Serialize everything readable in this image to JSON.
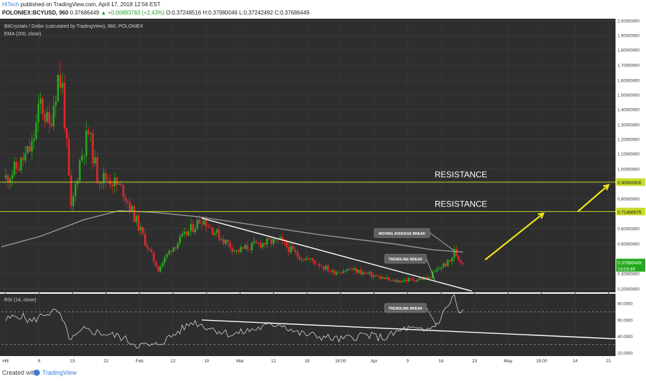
{
  "header": {
    "publisher": "HiTech",
    "published_text": "published on TradingView.com, April 17, 2018 12:56 EST",
    "symbol_line_prefix": "POLONIEX:BCYUSD, 960",
    "last_price": "0.37686449",
    "change": "▲ +0.00893783 (+2.43%)",
    "ohlc": "O:0.37248516 H:0.37980046 L:0.37242492 C:0.37686449"
  },
  "footer": {
    "created_with": "Created with",
    "brand": "TradingView"
  },
  "colors": {
    "background": "#2e2e2e",
    "up": "#26a91e",
    "down": "#e2282d",
    "ema": "#9a9a9a",
    "resistance": "#c8dc2a",
    "arrows": "#f0e61a",
    "trendline": "#ffffff"
  },
  "chart_data": [
    {
      "type": "candlestick",
      "title": "BitCrystals / Dollar (calculated by TradingView), 960, POLONIEX",
      "indicator_label": "EMA (200, close)",
      "x_ticks": [
        "Hlll",
        "8",
        "15",
        "22",
        "Feb",
        "12",
        "19",
        "Mar",
        "12",
        "19",
        "19:00",
        "Apr",
        "9",
        "16",
        "23",
        "May",
        "19:00",
        "14",
        "21"
      ],
      "y_ticks": [
        "2.00000000",
        "1.90000000",
        "1.80000000",
        "1.70000000",
        "1.60000000",
        "1.50000000",
        "1.40000000",
        "1.30000000",
        "1.20000000",
        "1.10000000",
        "1.00000000",
        "0.90000000",
        "0.80000000",
        "0.60000000",
        "0.50000000",
        "0.30000000",
        "0.20000000"
      ],
      "ylim": [
        0.17,
        2.05
      ],
      "series": [
        {
          "name": "BitCrystals / Dollar",
          "points": [
            {
              "date": "Jan 2",
              "price": 0.94
            },
            {
              "date": "Jan 5",
              "price": 1.02
            },
            {
              "date": "Jan 8",
              "price": 1.15
            },
            {
              "date": "Jan 10",
              "price": 1.45
            },
            {
              "date": "Jan 12",
              "price": 1.28
            },
            {
              "date": "Jan 14",
              "price": 1.62
            },
            {
              "date": "Jan 15",
              "price": 1.55
            },
            {
              "date": "Jan 17",
              "price": 0.72
            },
            {
              "date": "Jan 19",
              "price": 1.05
            },
            {
              "date": "Jan 21",
              "price": 1.25
            },
            {
              "date": "Jan 23",
              "price": 0.95
            },
            {
              "date": "Jan 26",
              "price": 0.93
            },
            {
              "date": "Jan 29",
              "price": 0.85
            },
            {
              "date": "Feb 1",
              "price": 0.65
            },
            {
              "date": "Feb 4",
              "price": 0.45
            },
            {
              "date": "Feb 6",
              "price": 0.33
            },
            {
              "date": "Feb 9",
              "price": 0.47
            },
            {
              "date": "Feb 12",
              "price": 0.55
            },
            {
              "date": "Feb 16",
              "price": 0.67
            },
            {
              "date": "Feb 20",
              "price": 0.55
            },
            {
              "date": "Feb 24",
              "price": 0.45
            },
            {
              "date": "Mar 1",
              "price": 0.5
            },
            {
              "date": "Mar 6",
              "price": 0.52
            },
            {
              "date": "Mar 10",
              "price": 0.42
            },
            {
              "date": "Mar 14",
              "price": 0.38
            },
            {
              "date": "Mar 18",
              "price": 0.31
            },
            {
              "date": "Mar 22",
              "price": 0.33
            },
            {
              "date": "Mar 27",
              "price": 0.29
            },
            {
              "date": "Apr 1",
              "price": 0.25
            },
            {
              "date": "Apr 5",
              "price": 0.26
            },
            {
              "date": "Apr 9",
              "price": 0.27
            },
            {
              "date": "Apr 12",
              "price": 0.35
            },
            {
              "date": "Apr 14",
              "price": 0.38
            },
            {
              "date": "Apr 15",
              "price": 0.45
            },
            {
              "date": "Apr 16",
              "price": 0.4
            },
            {
              "date": "Apr 17",
              "price": 0.377
            }
          ]
        },
        {
          "name": "EMA (200, close)",
          "points": [
            {
              "date": "Jan 1",
              "price": 0.48
            },
            {
              "date": "Jan 10",
              "price": 0.55
            },
            {
              "date": "Jan 20",
              "price": 0.66
            },
            {
              "date": "Jan 28",
              "price": 0.72
            },
            {
              "date": "Feb 5",
              "price": 0.71
            },
            {
              "date": "Feb 15",
              "price": 0.68
            },
            {
              "date": "Mar 1",
              "price": 0.62
            },
            {
              "date": "Mar 15",
              "price": 0.56
            },
            {
              "date": "Apr 1",
              "price": 0.5
            },
            {
              "date": "Apr 10",
              "price": 0.46
            },
            {
              "date": "Apr 17",
              "price": 0.445
            }
          ]
        }
      ],
      "resistance_levels": [
        {
          "label": "RESISTANCE",
          "value": 0.909935,
          "price_tag": "0.90993500"
        },
        {
          "label": "RESISTANCE",
          "value": 0.71466675,
          "price_tag": "0.71466675"
        }
      ],
      "price_tags": [
        {
          "text": "0.37686449",
          "value": 0.37686449
        },
        {
          "text": "14:03:49",
          "value": 0.35
        }
      ],
      "annotations": [
        "MOVING AVERAGE BREAK",
        "TRENDLINE BREAK"
      ]
    },
    {
      "type": "line",
      "title": "RSI (14, close)",
      "y_ticks": [
        "80.0000",
        "60.0000",
        "40.0000",
        "20.0000"
      ],
      "ylim": [
        16,
        92
      ],
      "bands": [
        70,
        30
      ],
      "series": [
        {
          "name": "RSI (14, close)",
          "points": [
            {
              "date": "Jan 2",
              "rsi": 60
            },
            {
              "date": "Jan 5",
              "rsi": 66
            },
            {
              "date": "Jan 8",
              "rsi": 58
            },
            {
              "date": "Jan 11",
              "rsi": 68
            },
            {
              "date": "Jan 14",
              "rsi": 70
            },
            {
              "date": "Jan 17",
              "rsi": 35
            },
            {
              "date": "Jan 20",
              "rsi": 48
            },
            {
              "date": "Jan 24",
              "rsi": 44
            },
            {
              "date": "Jan 28",
              "rsi": 40
            },
            {
              "date": "Feb 1",
              "rsi": 30
            },
            {
              "date": "Feb 5",
              "rsi": 28
            },
            {
              "date": "Feb 9",
              "rsi": 40
            },
            {
              "date": "Feb 14",
              "rsi": 58
            },
            {
              "date": "Feb 18",
              "rsi": 50
            },
            {
              "date": "Feb 23",
              "rsi": 42
            },
            {
              "date": "Mar 1",
              "rsi": 50
            },
            {
              "date": "Mar 6",
              "rsi": 56
            },
            {
              "date": "Mar 10",
              "rsi": 44
            },
            {
              "date": "Mar 15",
              "rsi": 40
            },
            {
              "date": "Mar 20",
              "rsi": 36
            },
            {
              "date": "Mar 25",
              "rsi": 42
            },
            {
              "date": "Mar 30",
              "rsi": 38
            },
            {
              "date": "Apr 4",
              "rsi": 50
            },
            {
              "date": "Apr 8",
              "rsi": 46
            },
            {
              "date": "Apr 11",
              "rsi": 55
            },
            {
              "date": "Apr 14",
              "rsi": 82
            },
            {
              "date": "Apr 15",
              "rsi": 90
            },
            {
              "date": "Apr 16",
              "rsi": 68
            },
            {
              "date": "Apr 17",
              "rsi": 70
            }
          ]
        }
      ],
      "annotations": [
        "TRENDLINE BREAK"
      ]
    }
  ]
}
